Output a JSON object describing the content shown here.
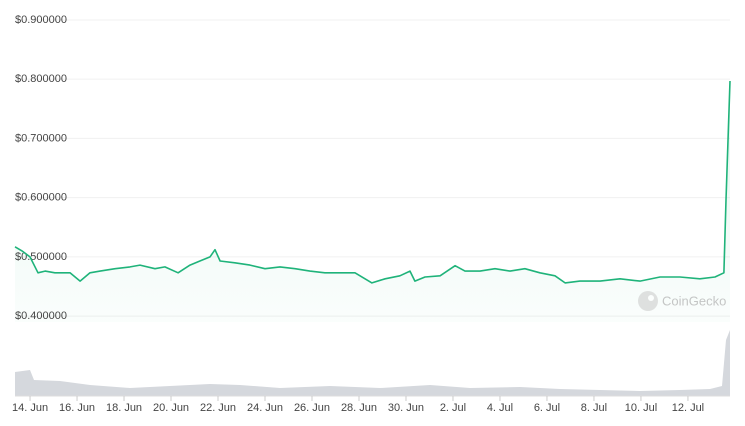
{
  "chart_data": {
    "type": "line",
    "watermark": "CoinGecko",
    "x": [
      -0.64,
      -0.34,
      0,
      0.34,
      0.64,
      1.06,
      1.7,
      2.13,
      2.55,
      2.98,
      3.62,
      4.26,
      4.68,
      5.32,
      5.74,
      6.3,
      6.81,
      7.23,
      7.66,
      7.87,
      8.09,
      8.72,
      9.36,
      10.0,
      10.64,
      11.28,
      11.91,
      12.55,
      13.19,
      13.83,
      14.55,
      15.11,
      15.74,
      16.17,
      16.38,
      16.81,
      17.45,
      18.09,
      18.51,
      19.15,
      19.79,
      20.43,
      21.06,
      21.7,
      22.34,
      22.77,
      23.4,
      24.26,
      25.11,
      25.96,
      26.81,
      27.66,
      28.51,
      29.15,
      29.53,
      29.62,
      29.79
    ],
    "series": [
      {
        "color": "#1fb37a",
        "values": [
          0.517,
          0.51,
          0.5,
          0.473,
          0.476,
          0.473,
          0.473,
          0.459,
          0.473,
          0.476,
          0.48,
          0.483,
          0.486,
          0.48,
          0.483,
          0.473,
          0.486,
          0.493,
          0.5,
          0.512,
          0.493,
          0.49,
          0.486,
          0.48,
          0.483,
          0.48,
          0.476,
          0.473,
          0.473,
          0.473,
          0.456,
          0.463,
          0.468,
          0.476,
          0.459,
          0.466,
          0.468,
          0.485,
          0.476,
          0.476,
          0.48,
          0.476,
          0.48,
          0.473,
          0.468,
          0.456,
          0.459,
          0.459,
          0.463,
          0.459,
          0.466,
          0.466,
          0.463,
          0.466,
          0.473,
          0.596,
          0.797
        ]
      }
    ],
    "xlim": [
      -0.64,
      29.79
    ],
    "xticks": [
      {
        "value": 0,
        "label": "14. Jun"
      },
      {
        "value": 2,
        "label": "16. Jun"
      },
      {
        "value": 4,
        "label": "18. Jun"
      },
      {
        "value": 6,
        "label": "20. Jun"
      },
      {
        "value": 8,
        "label": "22. Jun"
      },
      {
        "value": 10,
        "label": "24. Jun"
      },
      {
        "value": 12,
        "label": "26. Jun"
      },
      {
        "value": 14,
        "label": "28. Jun"
      },
      {
        "value": 16,
        "label": "30. Jun"
      },
      {
        "value": 18,
        "label": "2. Jul"
      },
      {
        "value": 20,
        "label": "4. Jul"
      },
      {
        "value": 22,
        "label": "6. Jul"
      },
      {
        "value": 24,
        "label": "8. Jul"
      },
      {
        "value": 26,
        "label": "10. Jul"
      },
      {
        "value": 28,
        "label": "12. Jul"
      }
    ],
    "ylim": [
      0.39,
      0.905
    ],
    "yticks": [
      {
        "value": 0.4,
        "label": "$0.400000"
      },
      {
        "value": 0.5,
        "label": "$0.500000"
      },
      {
        "value": 0.6,
        "label": "$0.600000"
      },
      {
        "value": 0.7,
        "label": "$0.700000"
      },
      {
        "value": 0.8,
        "label": "$0.800000"
      },
      {
        "value": 0.9,
        "label": "$0.900000"
      }
    ],
    "grid": true
  }
}
